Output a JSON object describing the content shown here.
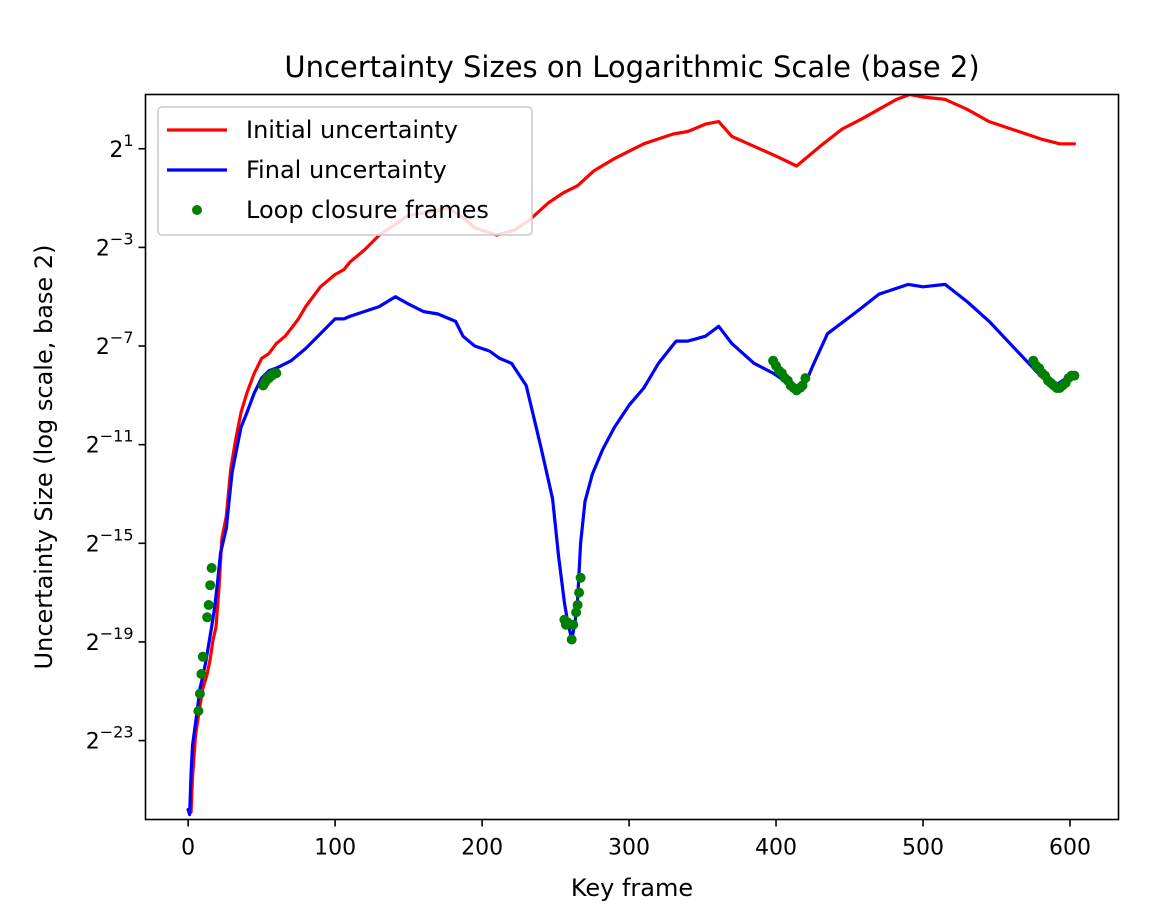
{
  "chart_data": {
    "type": "line",
    "title": "Uncertainty Sizes on Logarithmic Scale (base 2)",
    "xlabel": "Key frame",
    "ylabel": "Uncertainty Size (log scale, base 2)",
    "xlim": [
      -29,
      633
    ],
    "ylim_exponent": [
      -26.2,
      3.2
    ],
    "y_scale": "log2",
    "x_ticks": [
      0,
      100,
      200,
      300,
      400,
      500,
      600
    ],
    "y_ticks": [
      {
        "base": "2",
        "exp": "1",
        "value": 1
      },
      {
        "base": "2",
        "exp": "−3",
        "value": -3
      },
      {
        "base": "2",
        "exp": "−7",
        "value": -7
      },
      {
        "base": "2",
        "exp": "−11",
        "value": -11
      },
      {
        "base": "2",
        "exp": "−15",
        "value": -15
      },
      {
        "base": "2",
        "exp": "−19",
        "value": -19
      },
      {
        "base": "2",
        "exp": "−23",
        "value": -23
      }
    ],
    "grid": false,
    "legend_position": "upper-left",
    "series": [
      {
        "name": "Initial uncertainty",
        "color": "#ff0000",
        "style": "line",
        "x": [
          0,
          2,
          3,
          5,
          8,
          10,
          13,
          15,
          17,
          19,
          21,
          23,
          26,
          29,
          32,
          36,
          40,
          45,
          50,
          55,
          60,
          66,
          70,
          75,
          80,
          90,
          100,
          106,
          110,
          120,
          130,
          140,
          150,
          160,
          170,
          176,
          185,
          195,
          210,
          222,
          232,
          245,
          255,
          265,
          276,
          290,
          300,
          310,
          320,
          330,
          340,
          352,
          361,
          370,
          385,
          400,
          414,
          420,
          430,
          445,
          458,
          470,
          482,
          491,
          500,
          515,
          530,
          545,
          560,
          580,
          593,
          603
        ],
        "y_log2": [
          -25.8,
          -25.9,
          -24.5,
          -22.8,
          -21.6,
          -20.9,
          -20.3,
          -19.7,
          -18.9,
          -18.4,
          -16.8,
          -14.8,
          -13.9,
          -12.0,
          -10.9,
          -9.7,
          -8.9,
          -8.1,
          -7.5,
          -7.3,
          -6.9,
          -6.6,
          -6.3,
          -5.9,
          -5.4,
          -4.6,
          -4.1,
          -3.9,
          -3.6,
          -3.1,
          -2.5,
          -2.1,
          -1.7,
          -1.6,
          -1.5,
          -1.4,
          -1.7,
          -2.2,
          -2.5,
          -2.3,
          -1.9,
          -1.2,
          -0.8,
          -0.5,
          0.1,
          0.6,
          0.9,
          1.2,
          1.4,
          1.6,
          1.7,
          2.0,
          2.1,
          1.5,
          1.1,
          0.7,
          0.3,
          0.6,
          1.1,
          1.8,
          2.2,
          2.6,
          3.0,
          3.2,
          3.1,
          3.0,
          2.6,
          2.1,
          1.8,
          1.4,
          1.2,
          1.2
        ]
      },
      {
        "name": "Final uncertainty",
        "color": "#0000ff",
        "style": "line",
        "x": [
          0,
          1,
          2,
          3,
          5,
          7,
          8,
          10,
          12,
          14,
          16,
          18,
          20,
          22,
          24,
          26,
          28,
          30,
          33,
          36,
          40,
          45,
          50,
          55,
          60,
          70,
          80,
          90,
          100,
          106,
          110,
          120,
          130,
          141,
          150,
          160,
          170,
          182,
          187,
          195,
          205,
          212,
          220,
          230,
          240,
          248,
          252,
          256,
          258,
          261,
          262,
          263,
          265,
          267,
          270,
          275,
          282,
          290,
          300,
          310,
          320,
          332,
          340,
          352,
          361,
          370,
          385,
          398,
          408,
          414,
          418,
          425,
          435,
          455,
          470,
          490,
          500,
          515,
          530,
          545,
          575,
          580,
          590,
          600,
          603
        ],
        "y_log2": [
          -25.8,
          -26.0,
          -24.3,
          -23.2,
          -22.3,
          -21.4,
          -20.9,
          -20.4,
          -19.8,
          -19.1,
          -18.4,
          -17.6,
          -16.6,
          -15.4,
          -14.9,
          -14.4,
          -13.2,
          -12.1,
          -11.2,
          -10.3,
          -9.7,
          -8.9,
          -8.3,
          -8.0,
          -7.9,
          -7.6,
          -7.1,
          -6.5,
          -5.9,
          -5.9,
          -5.8,
          -5.6,
          -5.4,
          -5.0,
          -5.3,
          -5.6,
          -5.7,
          -6.0,
          -6.6,
          -7.0,
          -7.2,
          -7.5,
          -7.7,
          -8.6,
          -11.1,
          -13.2,
          -15.5,
          -17.4,
          -18.1,
          -18.9,
          -18.6,
          -18.3,
          -17.3,
          -15.0,
          -13.3,
          -12.2,
          -11.2,
          -10.3,
          -9.4,
          -8.7,
          -7.7,
          -6.8,
          -6.8,
          -6.6,
          -6.2,
          -6.9,
          -7.7,
          -8.1,
          -8.5,
          -8.8,
          -8.8,
          -7.8,
          -6.5,
          -5.6,
          -4.9,
          -4.5,
          -4.6,
          -4.5,
          -5.2,
          -6.0,
          -7.9,
          -8.2,
          -8.6,
          -8.2,
          -8.2
        ]
      },
      {
        "name": "Loop closure frames",
        "color": "#008000",
        "style": "scatter",
        "x": [
          7,
          8,
          9,
          10,
          13,
          14,
          15,
          16,
          51,
          52,
          53,
          54,
          55,
          56,
          57,
          58,
          59,
          60,
          256,
          257,
          258,
          261,
          262,
          264,
          265,
          266,
          267,
          398,
          400,
          402,
          404,
          406,
          408,
          410,
          412,
          414,
          416,
          418,
          420,
          575,
          577,
          579,
          581,
          583,
          585,
          587,
          589,
          591,
          593,
          595,
          597,
          599,
          601,
          603
        ],
        "y_log2": [
          -21.8,
          -21.1,
          -20.3,
          -19.6,
          -18.0,
          -17.5,
          -16.7,
          -16.0,
          -8.6,
          -8.5,
          -8.4,
          -8.3,
          -8.3,
          -8.2,
          -8.2,
          -8.1,
          -8.1,
          -8.1,
          -18.1,
          -18.3,
          -18.2,
          -18.9,
          -18.3,
          -17.8,
          -17.5,
          -17.0,
          -16.4,
          -7.6,
          -7.8,
          -8.0,
          -8.1,
          -8.3,
          -8.4,
          -8.6,
          -8.7,
          -8.8,
          -8.7,
          -8.6,
          -8.3,
          -7.6,
          -7.8,
          -7.9,
          -8.1,
          -8.2,
          -8.4,
          -8.5,
          -8.6,
          -8.7,
          -8.7,
          -8.6,
          -8.5,
          -8.3,
          -8.2,
          -8.2
        ]
      }
    ]
  }
}
